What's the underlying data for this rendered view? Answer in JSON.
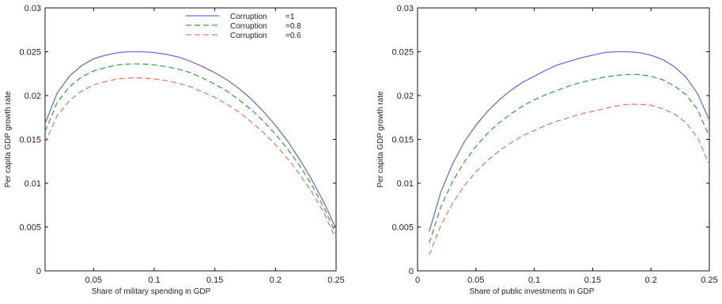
{
  "colors": {
    "s1": "#6b6bf0",
    "s2": "#3aa84a",
    "s3": "#f07a6a",
    "axis": "#111111"
  },
  "chart_data": [
    {
      "type": "line",
      "xlabel": "Share of military spending in GDP",
      "ylabel": "Per capita GDP growth rate",
      "xlim": [
        0.01,
        0.25
      ],
      "ylim": [
        0,
        0.03
      ],
      "xticks": [
        "0.05",
        "0.1",
        "0.15",
        "0.2",
        "0.25"
      ],
      "yticks": [
        "0",
        "0.005",
        "0.01",
        "0.015",
        "0.02",
        "0.025",
        "0.03"
      ],
      "grid": false,
      "legend": "top-center",
      "x": [
        0.01,
        0.02,
        0.03,
        0.04,
        0.05,
        0.06,
        0.07,
        0.08,
        0.09,
        0.1,
        0.11,
        0.12,
        0.13,
        0.14,
        0.15,
        0.16,
        0.17,
        0.18,
        0.19,
        0.2,
        0.21,
        0.22,
        0.23,
        0.24,
        0.25
      ],
      "series": [
        {
          "name": "Corruption",
          "value_label": "=1",
          "style": "solid",
          "values": [
            0.0168,
            0.0203,
            0.0222,
            0.0234,
            0.0242,
            0.0246,
            0.0249,
            0.025,
            0.025,
            0.0249,
            0.0247,
            0.0244,
            0.0239,
            0.0233,
            0.0226,
            0.0218,
            0.0208,
            0.0196,
            0.0182,
            0.0166,
            0.0148,
            0.0127,
            0.0104,
            0.0078,
            0.0048
          ]
        },
        {
          "name": "Corruption",
          "value_label": "=0.8",
          "style": "dashed",
          "values": [
            0.0159,
            0.0192,
            0.021,
            0.0221,
            0.0228,
            0.0232,
            0.0235,
            0.0236,
            0.0236,
            0.0235,
            0.0233,
            0.023,
            0.0226,
            0.022,
            0.0213,
            0.0205,
            0.0195,
            0.0184,
            0.0171,
            0.0156,
            0.0139,
            0.012,
            0.0098,
            0.0072,
            0.0042
          ]
        },
        {
          "name": "Corruption",
          "value_label": "=0.6",
          "style": "dashed",
          "values": [
            0.0146,
            0.0177,
            0.0194,
            0.0205,
            0.0212,
            0.0216,
            0.0219,
            0.022,
            0.022,
            0.0219,
            0.0217,
            0.0214,
            0.021,
            0.0204,
            0.0198,
            0.019,
            0.0181,
            0.017,
            0.0158,
            0.0144,
            0.0128,
            0.011,
            0.009,
            0.0066,
            0.0036
          ]
        }
      ]
    },
    {
      "type": "line",
      "xlabel": "Share of public investments in GDP",
      "ylabel": "Per capita GDP growth rate",
      "xlim": [
        0,
        0.25
      ],
      "ylim": [
        0,
        0.03
      ],
      "xticks": [
        "0",
        "0.05",
        "0.1",
        "0.15",
        "0.2",
        "0.25"
      ],
      "yticks": [
        "0",
        "0.005",
        "0.01",
        "0.015",
        "0.02",
        "0.025",
        "0.03"
      ],
      "grid": false,
      "x": [
        0.01,
        0.02,
        0.03,
        0.04,
        0.05,
        0.06,
        0.07,
        0.08,
        0.09,
        0.1,
        0.11,
        0.12,
        0.13,
        0.14,
        0.15,
        0.16,
        0.17,
        0.18,
        0.19,
        0.2,
        0.21,
        0.22,
        0.23,
        0.24,
        0.25
      ],
      "series": [
        {
          "style": "solid",
          "values": [
            0.0045,
            0.009,
            0.0122,
            0.0147,
            0.0166,
            0.0182,
            0.0195,
            0.0206,
            0.0215,
            0.0222,
            0.0229,
            0.0235,
            0.0239,
            0.0243,
            0.0246,
            0.0249,
            0.025,
            0.025,
            0.0249,
            0.0246,
            0.0241,
            0.0233,
            0.0221,
            0.0202,
            0.0172
          ]
        },
        {
          "style": "dashed",
          "values": [
            0.0032,
            0.0073,
            0.0102,
            0.0124,
            0.0142,
            0.0157,
            0.0169,
            0.0179,
            0.0188,
            0.0195,
            0.0201,
            0.0206,
            0.0211,
            0.0215,
            0.0218,
            0.0221,
            0.0223,
            0.0224,
            0.0224,
            0.0222,
            0.0218,
            0.0211,
            0.0201,
            0.0184,
            0.0153
          ]
        },
        {
          "style": "dashed",
          "values": [
            0.0018,
            0.0052,
            0.0077,
            0.0097,
            0.0113,
            0.0126,
            0.0137,
            0.0146,
            0.0154,
            0.016,
            0.0166,
            0.0171,
            0.0175,
            0.0179,
            0.0182,
            0.0185,
            0.0188,
            0.019,
            0.019,
            0.0189,
            0.0185,
            0.0179,
            0.0169,
            0.0152,
            0.0121
          ]
        }
      ]
    }
  ]
}
